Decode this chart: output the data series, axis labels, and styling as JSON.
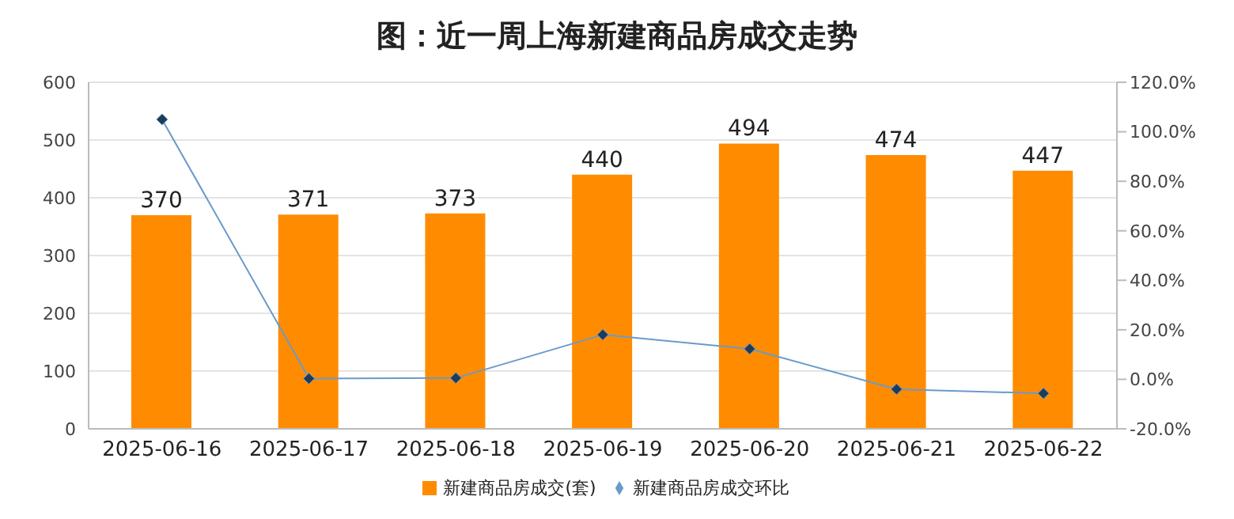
{
  "chart_data": {
    "type": "bar",
    "title": "图：近一周上海新建商品房成交走势",
    "categories": [
      "2025-06-16",
      "2025-06-17",
      "2025-06-18",
      "2025-06-19",
      "2025-06-20",
      "2025-06-21",
      "2025-06-22"
    ],
    "series": [
      {
        "name": "新建商品房成交(套)",
        "color": "#ff8c00",
        "values": [
          370,
          371,
          373,
          440,
          494,
          474,
          447
        ],
        "value_labels": [
          "370",
          "371",
          "373",
          "440",
          "494",
          "474",
          "447"
        ]
      },
      {
        "name": "新建商品房成交环比",
        "type": "line",
        "axis": "y2",
        "color": "#6a9acb",
        "marker": "diamond",
        "values": [
          105,
          0.3,
          0.5,
          18,
          12.3,
          -4,
          -5.7
        ]
      }
    ],
    "ylim": [
      0,
      600
    ],
    "yticks": [
      0,
      100,
      200,
      300,
      400,
      500,
      600
    ],
    "y2lim": [
      -20,
      120
    ],
    "y2ticks": [
      {
        "value": -20,
        "label": "-20.0%"
      },
      {
        "value": 0,
        "label": "0.0%"
      },
      {
        "value": 20,
        "label": "20.0%"
      },
      {
        "value": 40,
        "label": "40.0%"
      },
      {
        "value": 60,
        "label": "60.0%"
      },
      {
        "value": 80,
        "label": "80.0%"
      },
      {
        "value": 100,
        "label": "100.0%"
      },
      {
        "value": 120,
        "label": "120.0%"
      }
    ],
    "grid": "y",
    "legend": "bottom"
  }
}
